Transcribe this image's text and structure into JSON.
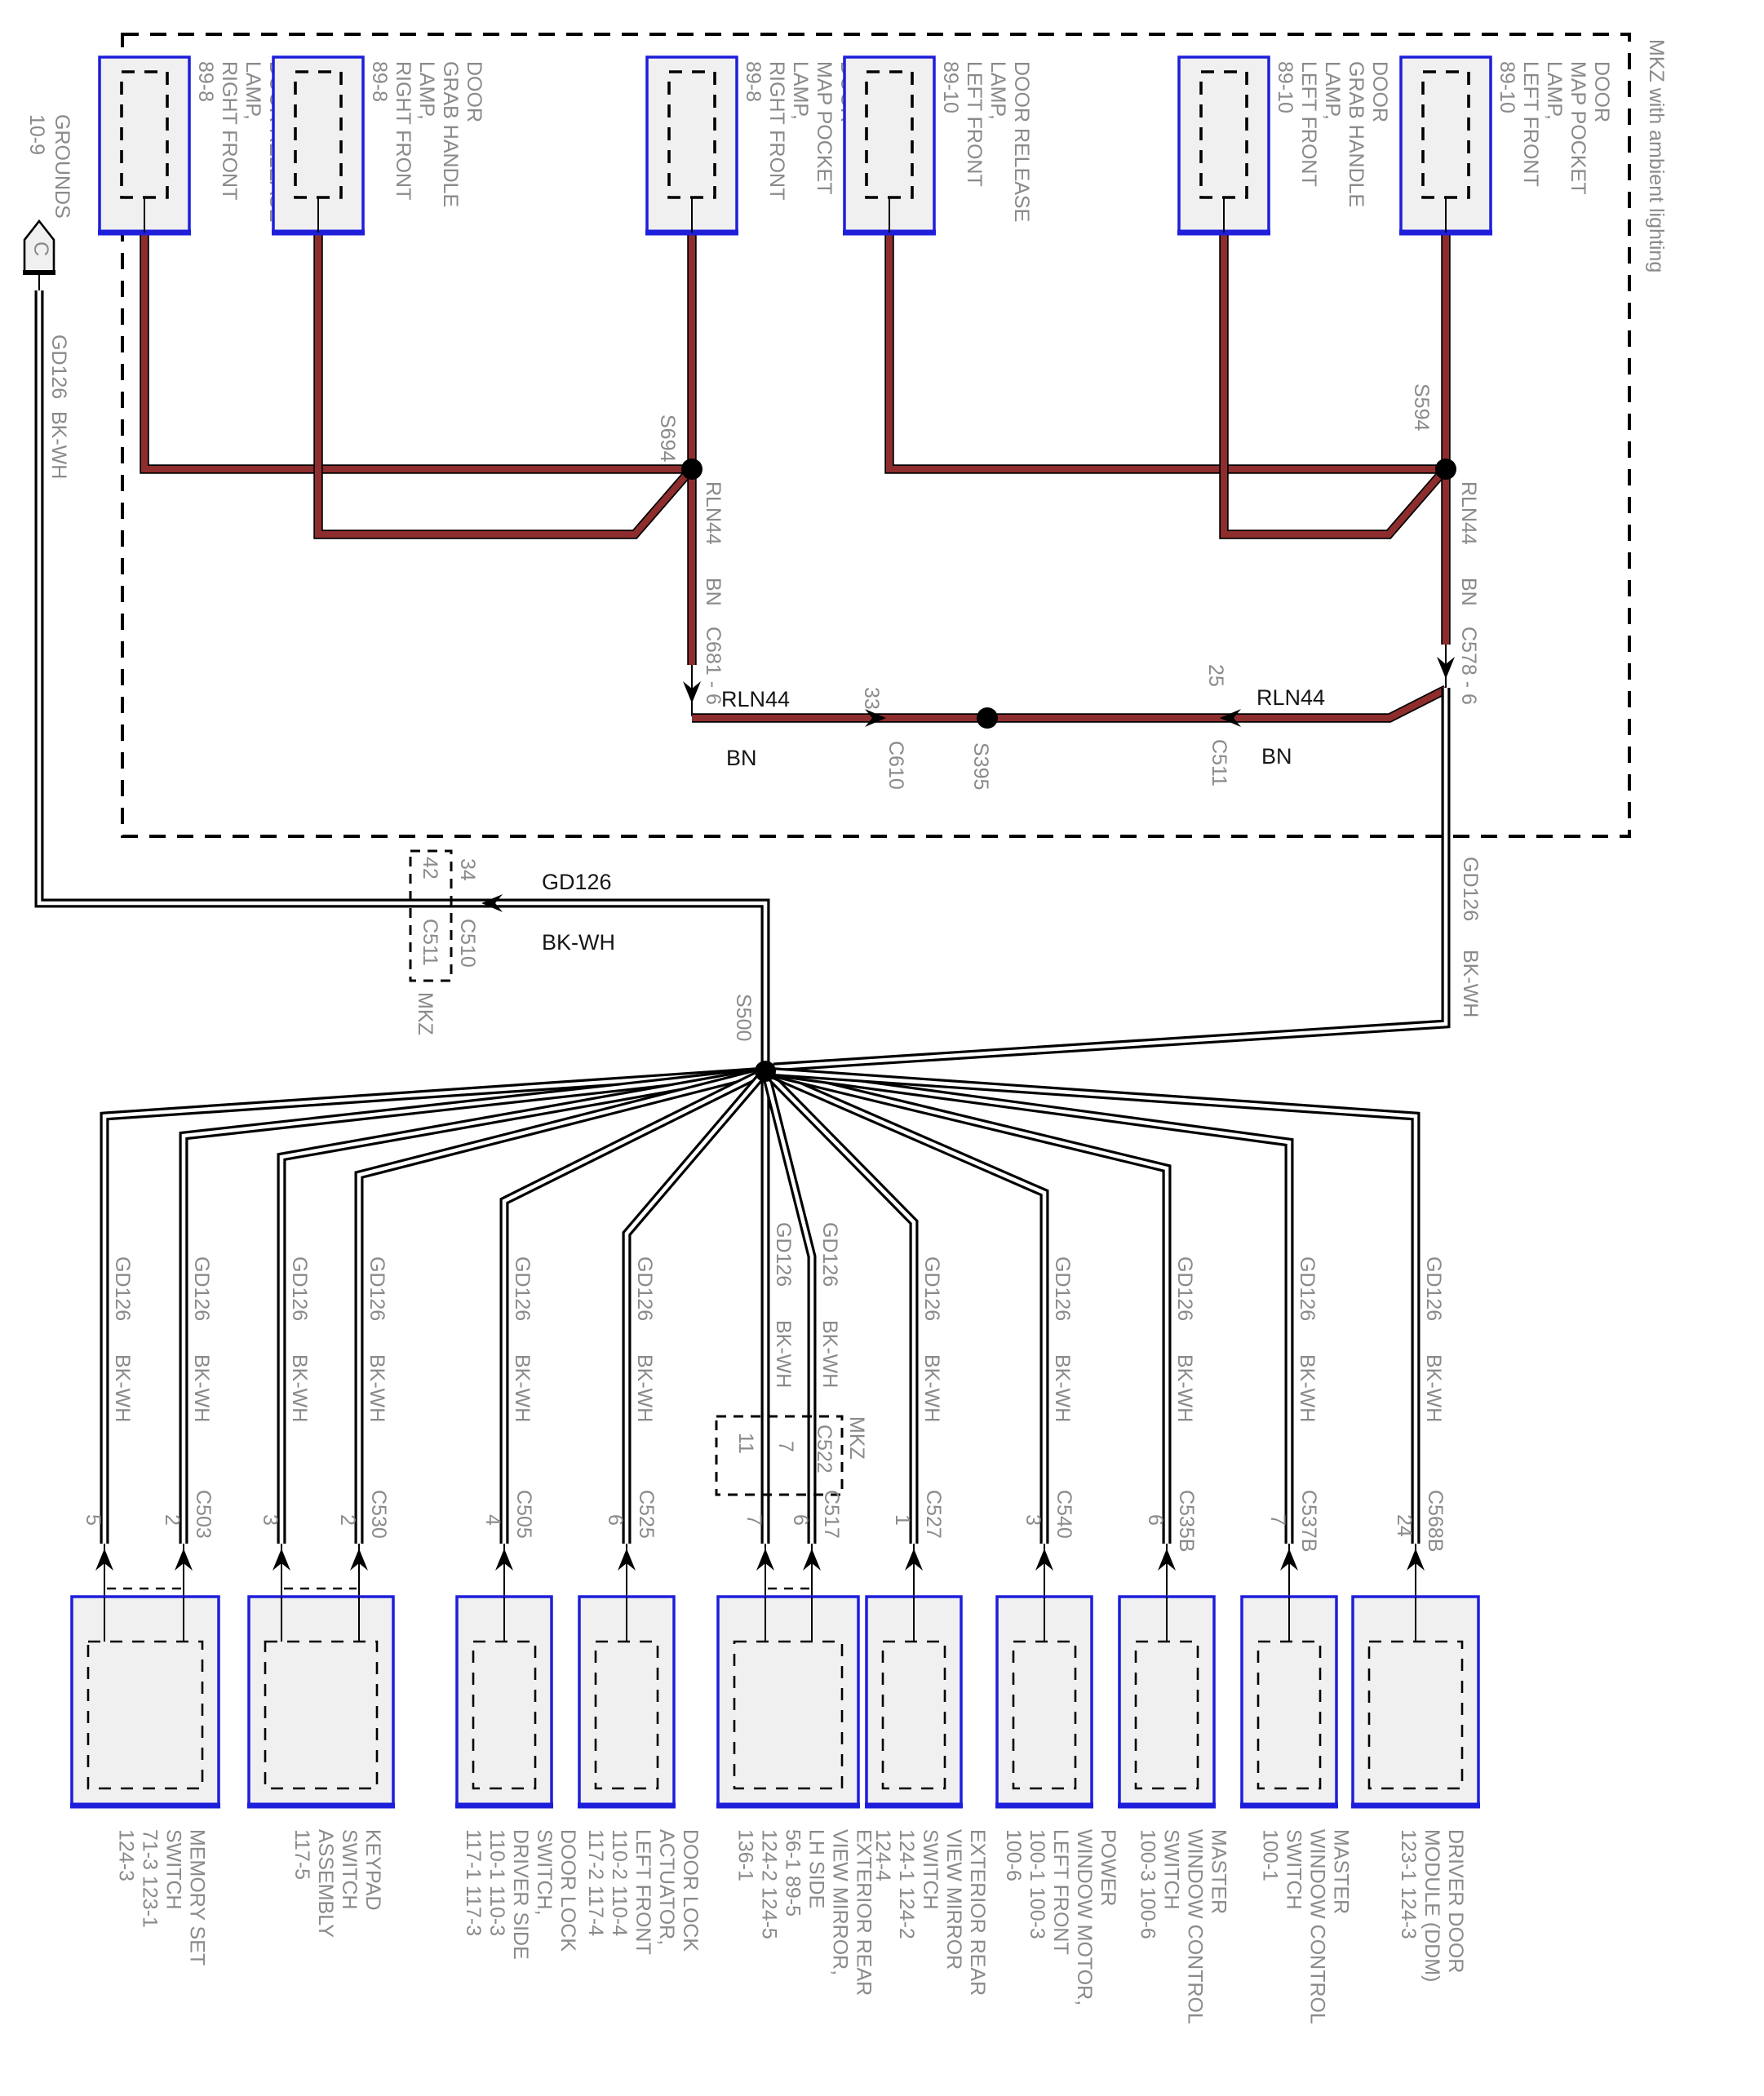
{
  "note_box": "MKZ with ambient lighting",
  "ground": {
    "connector": "C",
    "title": "GROUNDS",
    "page": "10-9",
    "circuit": "GD126",
    "color": "BK-WH"
  },
  "splices": {
    "s694": "S694",
    "s594": "S594",
    "s395": "S395",
    "s500": "S500"
  },
  "rln_bus": {
    "circuit": "RLN44",
    "color": "BN",
    "left_connector": "C681 - 6",
    "right_connector": "C578 - 6",
    "inline": [
      {
        "pin": "33",
        "connector": "C610"
      },
      {
        "pin": "25",
        "connector": "C511"
      }
    ]
  },
  "gd_wire": {
    "circuit": "GD126",
    "color": "BK-WH"
  },
  "inline_c510": {
    "inner_pin": "42",
    "inner_connector": "C511",
    "outer_pin": "34",
    "outer_connector": "C510",
    "variant": "MKZ"
  },
  "inline_c522": {
    "pin_a": "11",
    "pin_b": "7",
    "connector": "C522",
    "variant": "MKZ"
  },
  "top_components": [
    {
      "lines": [
        "DOOR RELEASE",
        "LAMP,",
        "RIGHT FRONT",
        "89-8"
      ]
    },
    {
      "lines": [
        "DOOR",
        "GRAB HANDLE",
        "LAMP,",
        "RIGHT FRONT",
        "89-8"
      ]
    },
    {
      "lines": [
        "DOOR",
        "MAP POCKET",
        "LAMP,",
        "RIGHT FRONT",
        "89-8"
      ]
    },
    {
      "lines": [
        "DOOR RELEASE",
        "LAMP,",
        "LEFT FRONT",
        "89-10"
      ]
    },
    {
      "lines": [
        "DOOR",
        "GRAB HANDLE",
        "LAMP,",
        "LEFT FRONT",
        "89-10"
      ]
    },
    {
      "lines": [
        "DOOR",
        "MAP POCKET",
        "LAMP,",
        "LEFT FRONT",
        "89-10"
      ]
    }
  ],
  "bottom_components": [
    {
      "lines": [
        "MEMORY SET",
        "SWITCH",
        "71-3  123-1",
        "124-3"
      ],
      "drops": [
        {
          "pin": "5",
          "connector": ""
        },
        {
          "pin": "2",
          "connector": "C503"
        }
      ]
    },
    {
      "lines": [
        "KEYPAD",
        "SWITCH",
        "ASSEMBLY",
        "117-5"
      ],
      "drops": [
        {
          "pin": "3",
          "connector": ""
        },
        {
          "pin": "2",
          "connector": "C530"
        }
      ]
    },
    {
      "lines": [
        "DOOR LOCK",
        "SWITCH,",
        "DRIVER SIDE",
        "110-1  110-3",
        "117-1  117-3"
      ],
      "drops": [
        {
          "pin": "4",
          "connector": "C505"
        }
      ]
    },
    {
      "lines": [
        "DOOR LOCK",
        "ACTUATOR,",
        "LEFT FRONT",
        "110-2  110-4",
        "117-2  117-4"
      ],
      "drops": [
        {
          "pin": "6",
          "connector": "C525"
        }
      ]
    },
    {
      "lines": [
        "EXTERIOR REAR",
        "VIEW MIRROR,",
        "LH SIDE",
        "56-1  89-5",
        "124-2  124-5",
        "136-1"
      ],
      "drops": [
        {
          "pin": "7",
          "connector": ""
        },
        {
          "pin": "6",
          "connector": "C517"
        }
      ]
    },
    {
      "lines": [
        "EXTERIOR REAR",
        "VIEW MIRROR",
        "SWITCH",
        "124-1  124-2",
        "124-4"
      ],
      "drops": [
        {
          "pin": "1",
          "connector": "C527"
        }
      ]
    },
    {
      "lines": [
        "POWER",
        "WINDOW MOTOR,",
        "LEFT FRONT",
        "100-1  100-3",
        "100-6"
      ],
      "drops": [
        {
          "pin": "3",
          "connector": "C540"
        }
      ]
    },
    {
      "lines": [
        "MASTER",
        "WINDOW CONTROL",
        "SWITCH",
        "100-3  100-6"
      ],
      "drops": [
        {
          "pin": "6",
          "connector": "C535B"
        }
      ]
    },
    {
      "lines": [
        "MASTER",
        "WINDOW CONTROL",
        "SWITCH",
        "100-1"
      ],
      "drops": [
        {
          "pin": "7",
          "connector": "C537B"
        }
      ]
    },
    {
      "lines": [
        "DRIVER DOOR",
        "MODULE (DDM)",
        "123-1  124-3"
      ],
      "drops": [
        {
          "pin": "24",
          "connector": "C568B"
        }
      ]
    }
  ],
  "colors": {
    "wire_red": "#8e2d2d",
    "box_blue": "#1e1edb",
    "box_fill": "#f0f0f0",
    "gray_text": "#8a8a8a",
    "black_text": "#161616"
  }
}
